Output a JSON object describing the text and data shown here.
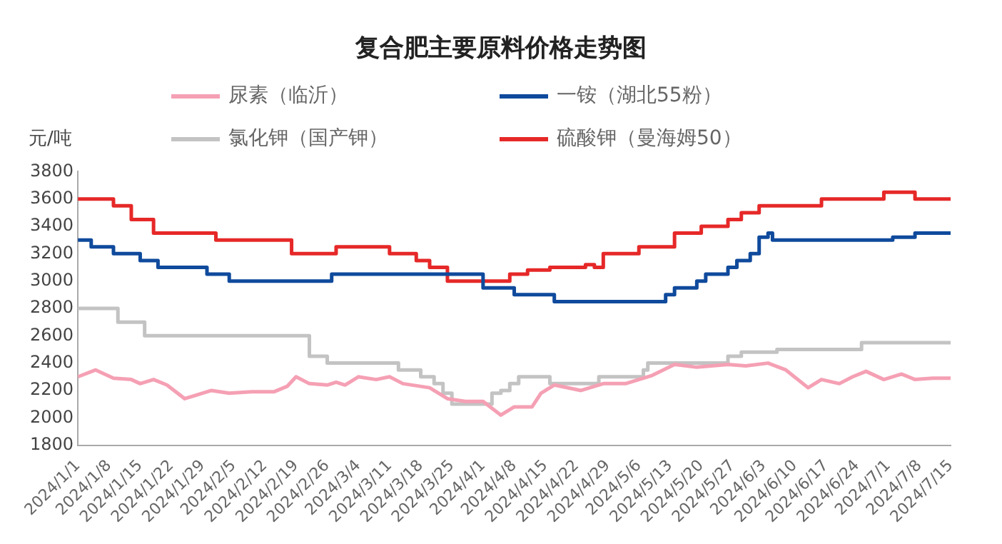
{
  "chart_data": {
    "type": "line",
    "title": "复合肥主要原料价格走势图",
    "ylabel": "元/吨",
    "legend": "top",
    "marker": "none",
    "xlim": [
      "2024-01-01",
      "2024-07-15"
    ],
    "xticks": [
      {
        "value": "2024-01-01",
        "label": "2024/1/1"
      },
      {
        "value": "2024-01-08",
        "label": "2024/1/8"
      },
      {
        "value": "2024-01-15",
        "label": "2024/1/15"
      },
      {
        "value": "2024-01-22",
        "label": "2024/1/22"
      },
      {
        "value": "2024-01-29",
        "label": "2024/1/29"
      },
      {
        "value": "2024-02-05",
        "label": "2024/2/5"
      },
      {
        "value": "2024-02-12",
        "label": "2024/2/12"
      },
      {
        "value": "2024-02-19",
        "label": "2024/2/19"
      },
      {
        "value": "2024-02-26",
        "label": "2024/2/26"
      },
      {
        "value": "2024-03-04",
        "label": "2024/3/4"
      },
      {
        "value": "2024-03-11",
        "label": "2024/3/11"
      },
      {
        "value": "2024-03-18",
        "label": "2024/3/18"
      },
      {
        "value": "2024-03-25",
        "label": "2024/3/25"
      },
      {
        "value": "2024-04-01",
        "label": "2024/4/1"
      },
      {
        "value": "2024-04-08",
        "label": "2024/4/8"
      },
      {
        "value": "2024-04-15",
        "label": "2024/4/15"
      },
      {
        "value": "2024-04-22",
        "label": "2024/4/22"
      },
      {
        "value": "2024-04-29",
        "label": "2024/4/29"
      },
      {
        "value": "2024-05-06",
        "label": "2024/5/6"
      },
      {
        "value": "2024-05-13",
        "label": "2024/5/13"
      },
      {
        "value": "2024-05-20",
        "label": "2024/5/20"
      },
      {
        "value": "2024-05-27",
        "label": "2024/5/27"
      },
      {
        "value": "2024-06-03",
        "label": "2024/6/3"
      },
      {
        "value": "2024-06-10",
        "label": "2024/6/10"
      },
      {
        "value": "2024-06-17",
        "label": "2024/6/17"
      },
      {
        "value": "2024-06-24",
        "label": "2024/6/24"
      },
      {
        "value": "2024-07-01",
        "label": "2024/7/1"
      },
      {
        "value": "2024-07-08",
        "label": "2024/7/8"
      },
      {
        "value": "2024-07-15",
        "label": "2024/7/15"
      }
    ],
    "ylim": [
      1800,
      3800
    ],
    "yticks": [
      1800,
      2000,
      2200,
      2400,
      2600,
      2800,
      3000,
      3200,
      3400,
      3600,
      3800
    ],
    "series": [
      {
        "name": "尿素（临沂）",
        "color": "#f5a0b4",
        "x": [
          "2024-01-01",
          "2024-01-05",
          "2024-01-09",
          "2024-01-13",
          "2024-01-15",
          "2024-01-18",
          "2024-01-21",
          "2024-01-25",
          "2024-01-27",
          "2024-01-31",
          "2024-02-04",
          "2024-02-09",
          "2024-02-14",
          "2024-02-17",
          "2024-02-19",
          "2024-02-22",
          "2024-02-26",
          "2024-02-28",
          "2024-03-01",
          "2024-03-04",
          "2024-03-08",
          "2024-03-11",
          "2024-03-14",
          "2024-03-20",
          "2024-03-24",
          "2024-03-28",
          "2024-04-01",
          "2024-04-05",
          "2024-04-08",
          "2024-04-12",
          "2024-04-14",
          "2024-04-17",
          "2024-04-23",
          "2024-04-28",
          "2024-05-03",
          "2024-05-09",
          "2024-05-14",
          "2024-05-19",
          "2024-05-26",
          "2024-05-30",
          "2024-06-04",
          "2024-06-08",
          "2024-06-13",
          "2024-06-16",
          "2024-06-20",
          "2024-06-23",
          "2024-06-26",
          "2024-06-30",
          "2024-07-04",
          "2024-07-07",
          "2024-07-11",
          "2024-07-15"
        ],
        "values": [
          2300,
          2350,
          2290,
          2280,
          2250,
          2280,
          2240,
          2140,
          2160,
          2200,
          2180,
          2190,
          2190,
          2230,
          2300,
          2250,
          2240,
          2260,
          2240,
          2300,
          2280,
          2300,
          2250,
          2220,
          2140,
          2120,
          2120,
          2020,
          2080,
          2080,
          2180,
          2240,
          2200,
          2250,
          2250,
          2310,
          2390,
          2370,
          2390,
          2380,
          2400,
          2350,
          2220,
          2280,
          2250,
          2300,
          2340,
          2280,
          2320,
          2280,
          2290,
          2290
        ]
      },
      {
        "name": "一铵（湖北55粉）",
        "type": "step",
        "color": "#0f4a9c",
        "x": [
          "2024-01-01",
          "2024-01-04",
          "2024-01-09",
          "2024-01-15",
          "2024-01-19",
          "2024-01-30",
          "2024-02-04",
          "2024-02-27",
          "2024-04-01",
          "2024-04-08",
          "2024-04-17",
          "2024-05-12",
          "2024-05-14",
          "2024-05-19",
          "2024-05-21",
          "2024-05-26",
          "2024-05-28",
          "2024-05-31",
          "2024-06-02",
          "2024-06-04",
          "2024-06-05",
          "2024-07-02",
          "2024-07-07",
          "2024-07-15"
        ],
        "values": [
          3300,
          3250,
          3200,
          3150,
          3100,
          3050,
          3000,
          3050,
          2950,
          2900,
          2850,
          2900,
          2950,
          3000,
          3050,
          3100,
          3150,
          3200,
          3320,
          3350,
          3300,
          3320,
          3350,
          3350
        ]
      },
      {
        "name": "氯化钾（国产钾）",
        "type": "step",
        "color": "#c3c3c3",
        "x": [
          "2024-01-01",
          "2024-01-10",
          "2024-01-16",
          "2024-02-22",
          "2024-02-26",
          "2024-03-13",
          "2024-03-18",
          "2024-03-21",
          "2024-03-23",
          "2024-03-25",
          "2024-04-03",
          "2024-04-05",
          "2024-04-07",
          "2024-04-09",
          "2024-04-16",
          "2024-04-27",
          "2024-05-07",
          "2024-05-08",
          "2024-05-26",
          "2024-05-29",
          "2024-06-06",
          "2024-06-25",
          "2024-07-15"
        ],
        "values": [
          2800,
          2700,
          2600,
          2450,
          2400,
          2350,
          2300,
          2250,
          2180,
          2100,
          2180,
          2200,
          2250,
          2300,
          2250,
          2300,
          2350,
          2400,
          2450,
          2480,
          2500,
          2550,
          2550
        ]
      },
      {
        "name": "硫酸钾（曼海姆50）",
        "type": "step",
        "color": "#e62828",
        "x": [
          "2024-01-01",
          "2024-01-09",
          "2024-01-13",
          "2024-01-18",
          "2024-02-01",
          "2024-02-18",
          "2024-02-28",
          "2024-03-11",
          "2024-03-17",
          "2024-03-20",
          "2024-03-24",
          "2024-04-07",
          "2024-04-11",
          "2024-04-16",
          "2024-04-24",
          "2024-04-26",
          "2024-04-28",
          "2024-05-06",
          "2024-05-14",
          "2024-05-20",
          "2024-05-26",
          "2024-05-29",
          "2024-06-02",
          "2024-06-16",
          "2024-06-30",
          "2024-07-07",
          "2024-07-15"
        ],
        "values": [
          3600,
          3550,
          3450,
          3350,
          3300,
          3200,
          3250,
          3200,
          3150,
          3100,
          3000,
          3050,
          3080,
          3100,
          3120,
          3100,
          3200,
          3250,
          3350,
          3400,
          3450,
          3500,
          3550,
          3600,
          3650,
          3600,
          3600
        ]
      }
    ]
  }
}
